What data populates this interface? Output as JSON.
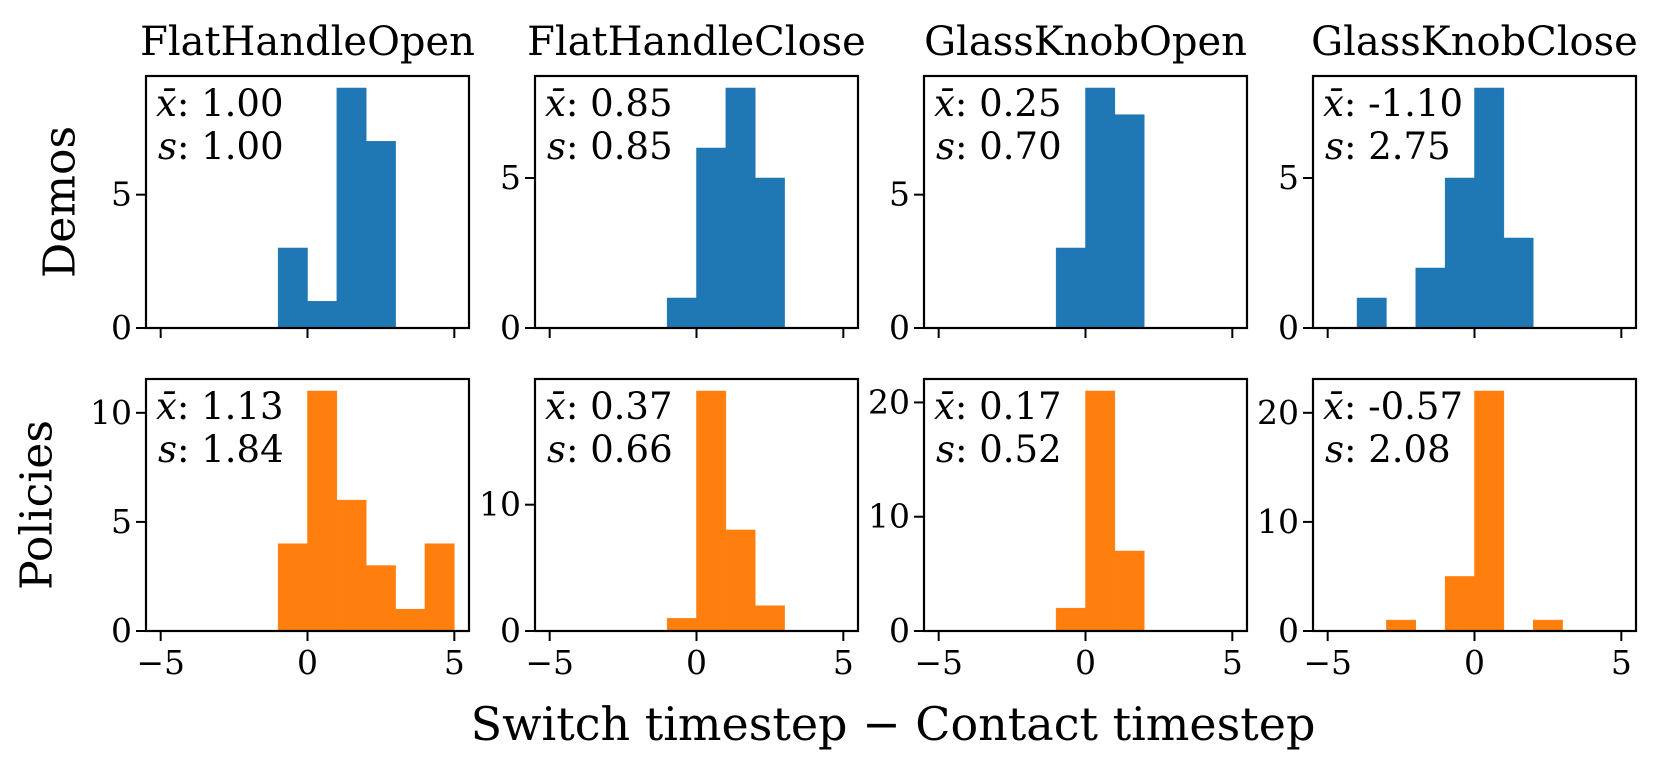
{
  "chart_data": {
    "type": "histogram-grid",
    "xlabel": "Switch timestep − Contact timestep",
    "row_labels": [
      "Demos",
      "Policies"
    ],
    "col_titles": [
      "FlatHandleOpen",
      "FlatHandleClose",
      "GlassKnobOpen",
      "GlassKnobClose"
    ],
    "xlim": [
      -5.5,
      5.5
    ],
    "bin_width": 1,
    "xticks": [
      -5,
      0,
      5
    ],
    "xtick_labels": [
      "−5",
      "0",
      "5"
    ],
    "colors": {
      "Demos": "#1f77b4",
      "Policies": "#ff7f0e"
    },
    "panels": [
      {
        "row": 0,
        "col": 0,
        "series": "Demos",
        "mean_label": "1.00",
        "std_label": "1.00",
        "ylim": [
          0,
          9.45
        ],
        "yticks": [
          0,
          5
        ],
        "bins": [
          {
            "x0": -1,
            "count": 3
          },
          {
            "x0": 0,
            "count": 1
          },
          {
            "x0": 1,
            "count": 9
          },
          {
            "x0": 2,
            "count": 7
          }
        ]
      },
      {
        "row": 0,
        "col": 1,
        "series": "Demos",
        "mean_label": "0.85",
        "std_label": "0.85",
        "ylim": [
          0,
          8.4
        ],
        "yticks": [
          0,
          5
        ],
        "bins": [
          {
            "x0": -1,
            "count": 1
          },
          {
            "x0": 0,
            "count": 6
          },
          {
            "x0": 1,
            "count": 8
          },
          {
            "x0": 2,
            "count": 5
          }
        ]
      },
      {
        "row": 0,
        "col": 2,
        "series": "Demos",
        "mean_label": "0.25",
        "std_label": "0.70",
        "ylim": [
          0,
          9.45
        ],
        "yticks": [
          0,
          5
        ],
        "bins": [
          {
            "x0": -1,
            "count": 3
          },
          {
            "x0": 0,
            "count": 9
          },
          {
            "x0": 1,
            "count": 8
          }
        ]
      },
      {
        "row": 0,
        "col": 3,
        "series": "Demos",
        "mean_label": "-1.10",
        "std_label": "2.75",
        "ylim": [
          0,
          8.4
        ],
        "yticks": [
          0,
          5
        ],
        "bins": [
          {
            "x0": -4,
            "count": 1
          },
          {
            "x0": -2,
            "count": 2
          },
          {
            "x0": -1,
            "count": 5
          },
          {
            "x0": 0,
            "count": 8
          },
          {
            "x0": 1,
            "count": 3
          }
        ]
      },
      {
        "row": 1,
        "col": 0,
        "series": "Policies",
        "mean_label": "1.13",
        "std_label": "1.84",
        "ylim": [
          0,
          11.55
        ],
        "yticks": [
          0,
          5,
          10
        ],
        "bins": [
          {
            "x0": -1,
            "count": 4
          },
          {
            "x0": 0,
            "count": 11
          },
          {
            "x0": 1,
            "count": 6
          },
          {
            "x0": 2,
            "count": 3
          },
          {
            "x0": 3,
            "count": 1
          },
          {
            "x0": 4,
            "count": 4
          }
        ]
      },
      {
        "row": 1,
        "col": 1,
        "series": "Policies",
        "mean_label": "0.37",
        "std_label": "0.66",
        "ylim": [
          0,
          19.95
        ],
        "yticks": [
          0,
          10
        ],
        "bins": [
          {
            "x0": -1,
            "count": 1
          },
          {
            "x0": 0,
            "count": 19
          },
          {
            "x0": 1,
            "count": 8
          },
          {
            "x0": 2,
            "count": 2
          }
        ]
      },
      {
        "row": 1,
        "col": 2,
        "series": "Policies",
        "mean_label": "0.17",
        "std_label": "0.52",
        "ylim": [
          0,
          22.05
        ],
        "yticks": [
          0,
          10,
          20
        ],
        "bins": [
          {
            "x0": -1,
            "count": 2
          },
          {
            "x0": 0,
            "count": 21
          },
          {
            "x0": 1,
            "count": 7
          }
        ]
      },
      {
        "row": 1,
        "col": 3,
        "series": "Policies",
        "mean_label": "-0.57",
        "std_label": "2.08",
        "ylim": [
          0,
          23.1
        ],
        "yticks": [
          0,
          10,
          20
        ],
        "bins": [
          {
            "x0": -3,
            "count": 1
          },
          {
            "x0": -1,
            "count": 5
          },
          {
            "x0": 0,
            "count": 22
          },
          {
            "x0": 2,
            "count": 1
          }
        ]
      }
    ]
  }
}
